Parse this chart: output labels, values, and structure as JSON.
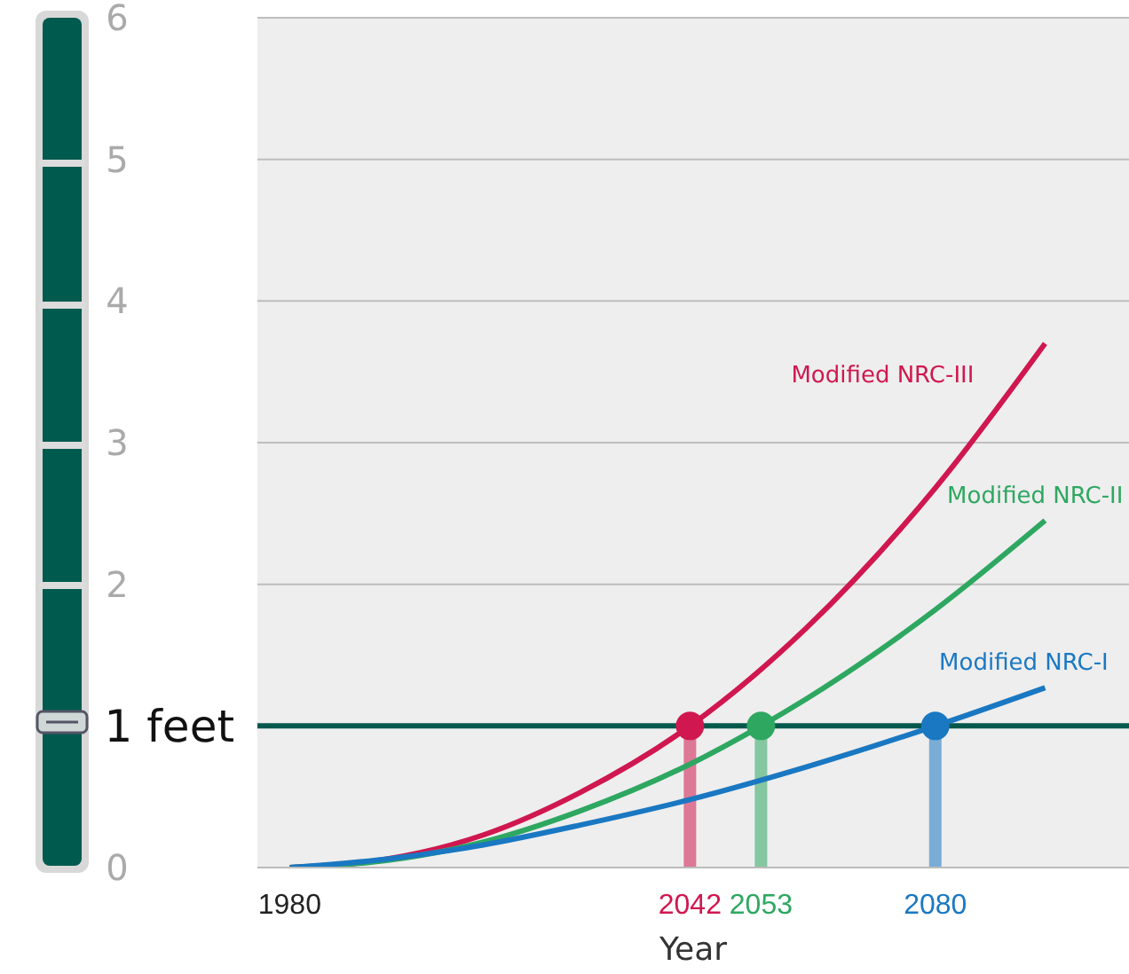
{
  "chart_data": {
    "type": "line",
    "xlabel": "Year",
    "xlim": [
      1975,
      2110
    ],
    "xticks": [
      1980,
      2042,
      2053,
      2080
    ],
    "ylim": [
      0,
      6
    ],
    "yticks": [
      0,
      {
        "value": 1,
        "label": null
      },
      2,
      3,
      4,
      5,
      6
    ],
    "grid": "y",
    "marker": "none",
    "line_style": "solid",
    "series": [
      {
        "name": "Modified NRC-III",
        "color": "#d0174f",
        "x": [
          1980,
          1995,
          2010,
          2025,
          2042,
          2060,
          2080,
          2097
        ],
        "values": [
          0,
          0.06,
          0.23,
          0.53,
          1,
          1.69,
          2.68,
          3.7
        ]
      },
      {
        "name": "Modified NRC-II",
        "color": "#2ea761",
        "x": [
          1980,
          1995,
          2010,
          2025,
          2042,
          2053,
          2060,
          2080,
          2097
        ],
        "values": [
          0,
          0.05,
          0.18,
          0.4,
          0.73,
          1,
          1.19,
          1.82,
          2.45
        ]
      },
      {
        "name": "Modified NRC-I",
        "color": "#1a78c2",
        "x": [
          1980,
          1995,
          2010,
          2025,
          2042,
          2060,
          2080,
          2097
        ],
        "values": [
          0,
          0.06,
          0.16,
          0.3,
          0.48,
          0.71,
          1,
          1.27
        ]
      },
      {
        "type": "lollipop",
        "marker": "circle",
        "x": [
          2042,
          2053,
          2080
        ],
        "values": [
          1,
          1,
          1
        ],
        "colors": [
          "#d0174f",
          "#2ea761",
          "#1a78c2"
        ]
      }
    ],
    "ref_lines": [
      {
        "axis": "y",
        "value": 1,
        "label": "1 feet",
        "color": "#00594c"
      }
    ]
  }
}
